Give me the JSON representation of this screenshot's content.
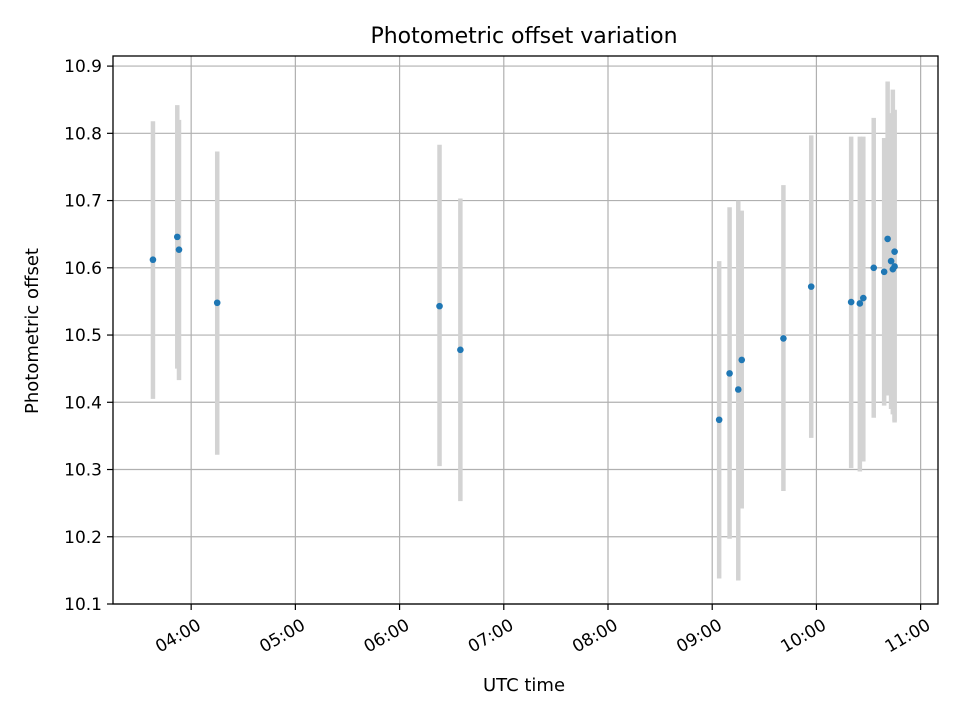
{
  "chart_data": {
    "type": "scatter",
    "title": "Photometric offset variation",
    "xlabel": "UTC time",
    "ylabel": "Photometric offset",
    "x_axis_type": "time",
    "x_time_range": [
      "03:15",
      "11:10"
    ],
    "ylim": [
      10.1,
      10.915
    ],
    "grid": true,
    "colors": {
      "point": "#1f77b4",
      "errorbar": "#d3d3d3",
      "grid": "#b0b0b0"
    },
    "x_ticks": [
      "04:00",
      "05:00",
      "06:00",
      "07:00",
      "08:00",
      "09:00",
      "10:00",
      "11:00"
    ],
    "y_ticks": [
      10.1,
      10.2,
      10.3,
      10.4,
      10.5,
      10.6,
      10.7,
      10.8,
      10.9
    ],
    "series": [
      {
        "points": [
          {
            "x": "03:38",
            "y": 10.612,
            "lo": 10.405,
            "hi": 10.818
          },
          {
            "x": "03:52",
            "y": 10.646,
            "lo": 10.45,
            "hi": 10.842
          },
          {
            "x": "03:53",
            "y": 10.627,
            "lo": 10.433,
            "hi": 10.82
          },
          {
            "x": "04:15",
            "y": 10.548,
            "lo": 10.322,
            "hi": 10.773
          },
          {
            "x": "06:23",
            "y": 10.543,
            "lo": 10.305,
            "hi": 10.783
          },
          {
            "x": "06:35",
            "y": 10.478,
            "lo": 10.253,
            "hi": 10.703
          },
          {
            "x": "09:04",
            "y": 10.374,
            "lo": 10.138,
            "hi": 10.61
          },
          {
            "x": "09:10",
            "y": 10.443,
            "lo": 10.197,
            "hi": 10.69
          },
          {
            "x": "09:15",
            "y": 10.419,
            "lo": 10.135,
            "hi": 10.7
          },
          {
            "x": "09:17",
            "y": 10.463,
            "lo": 10.242,
            "hi": 10.685
          },
          {
            "x": "09:41",
            "y": 10.495,
            "lo": 10.268,
            "hi": 10.723
          },
          {
            "x": "09:57",
            "y": 10.572,
            "lo": 10.347,
            "hi": 10.797
          },
          {
            "x": "10:20",
            "y": 10.549,
            "lo": 10.302,
            "hi": 10.795
          },
          {
            "x": "10:25",
            "y": 10.547,
            "lo": 10.297,
            "hi": 10.795
          },
          {
            "x": "10:27",
            "y": 10.555,
            "lo": 10.312,
            "hi": 10.795
          },
          {
            "x": "10:33",
            "y": 10.6,
            "lo": 10.377,
            "hi": 10.823
          },
          {
            "x": "10:39",
            "y": 10.594,
            "lo": 10.395,
            "hi": 10.793
          },
          {
            "x": "10:41",
            "y": 10.643,
            "lo": 10.41,
            "hi": 10.877
          },
          {
            "x": "10:43",
            "y": 10.61,
            "lo": 10.39,
            "hi": 10.83
          },
          {
            "x": "10:44",
            "y": 10.598,
            "lo": 10.382,
            "hi": 10.865
          },
          {
            "x": "10:45",
            "y": 10.624,
            "lo": 10.372,
            "hi": 10.835
          },
          {
            "x": "10:45",
            "y": 10.602,
            "lo": 10.37,
            "hi": 10.834
          }
        ]
      }
    ]
  }
}
